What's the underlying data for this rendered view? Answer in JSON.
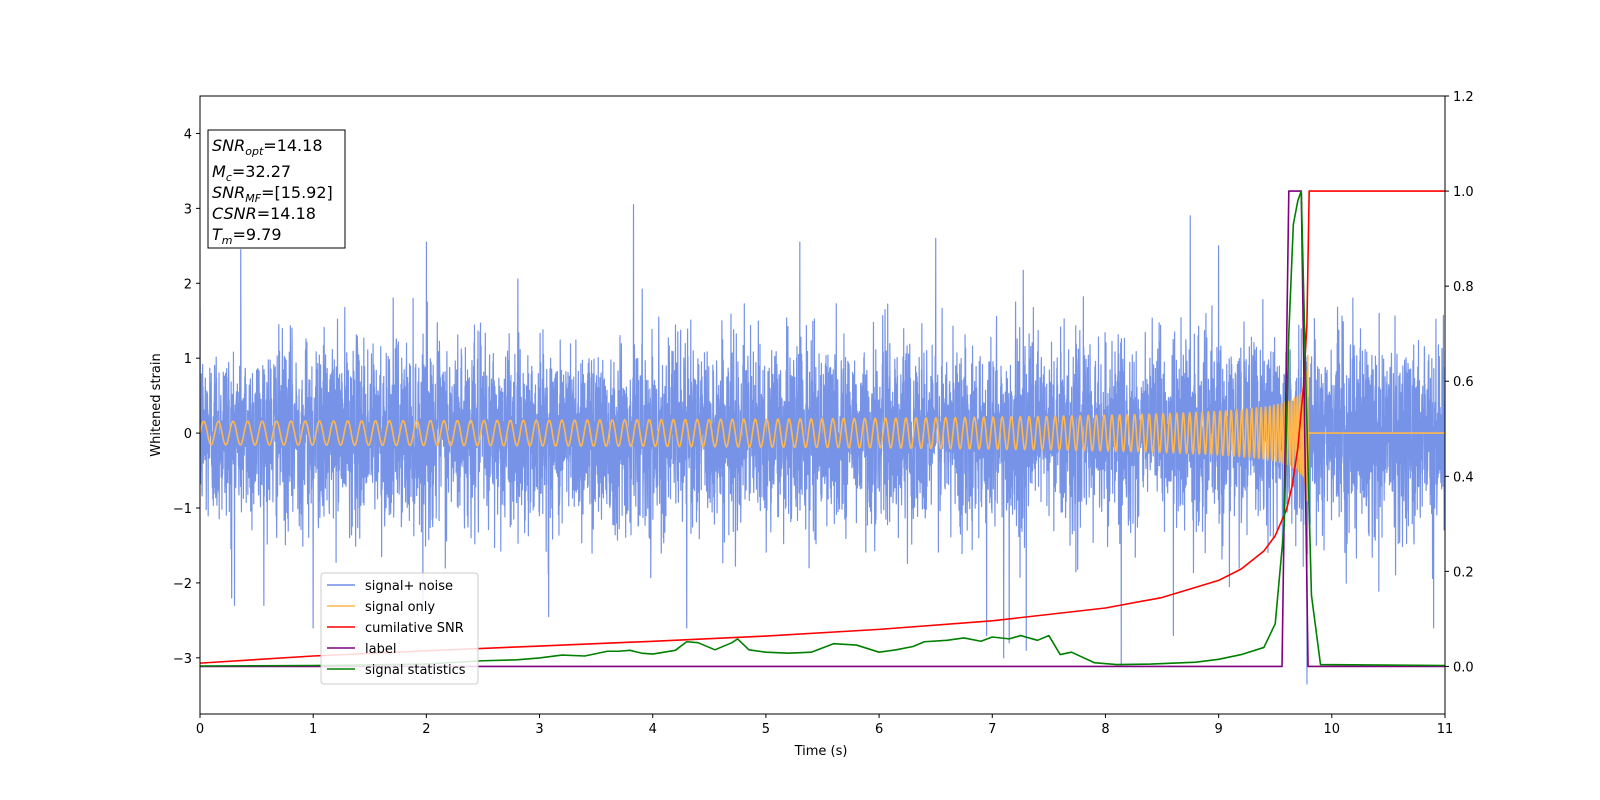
{
  "chart_data": {
    "type": "line",
    "xlabel": "Time (s)",
    "ylabel": "Whitened strain",
    "xlim": [
      0,
      11
    ],
    "ylim_left": [
      -3.75,
      4.5
    ],
    "ylim_right": [
      -0.1,
      1.2
    ],
    "x_ticks": [
      "0",
      "1",
      "2",
      "3",
      "4",
      "5",
      "6",
      "7",
      "8",
      "9",
      "10",
      "11"
    ],
    "y_ticks_left": [
      "−3",
      "−2",
      "−1",
      "0",
      "1",
      "2",
      "3",
      "4"
    ],
    "y_ticks_right": [
      "0.0",
      "0.2",
      "0.4",
      "0.6",
      "0.8",
      "1.0",
      "1.2"
    ],
    "grid": false,
    "legend_position": "lower-left",
    "annotation": {
      "snr_opt": {
        "base": "SNR",
        "sub": "opt",
        "value": "=14.18"
      },
      "mc": {
        "base": "M",
        "sub": "c",
        "value": "=32.27"
      },
      "snr_mf": {
        "base": "SNR",
        "sub": "MF",
        "value": "=[15.92]"
      },
      "csnr": {
        "base": "CSNR",
        "sub": "",
        "value": "=14.18"
      },
      "tm": {
        "base": "T",
        "sub": "m",
        "value": "=9.79"
      }
    },
    "series": [
      {
        "name": "signal+ noise",
        "axis": "left",
        "color": "#6f8de6",
        "kind": "noise",
        "sigma": 0.6,
        "x_range": [
          0,
          11
        ],
        "peaks": [
          [
            0.36,
            2.45
          ],
          [
            0.28,
            -2.2
          ],
          [
            1.0,
            -2.6
          ],
          [
            2.0,
            2.55
          ],
          [
            3.08,
            -2.45
          ],
          [
            3.83,
            3.05
          ],
          [
            4.3,
            -2.6
          ],
          [
            5.3,
            2.55
          ],
          [
            6.5,
            2.6
          ],
          [
            6.95,
            -2.7
          ],
          [
            7.1,
            -3.0
          ],
          [
            7.15,
            -2.8
          ],
          [
            7.3,
            -2.9
          ],
          [
            8.14,
            -3.1
          ],
          [
            8.6,
            -2.7
          ],
          [
            8.75,
            2.9
          ],
          [
            9.0,
            2.5
          ],
          [
            9.78,
            -3.35
          ],
          [
            10.9,
            -2.6
          ]
        ]
      },
      {
        "name": "signal only",
        "axis": "left",
        "color": "#ffb74d",
        "kind": "chirp",
        "t_merge": 9.79,
        "peak_amplitude": 1.1
      },
      {
        "name": "cumilative SNR",
        "axis": "right",
        "color": "#ff0000",
        "x": [
          0,
          1,
          2,
          3,
          4,
          5,
          6,
          7,
          8,
          8.5,
          9.0,
          9.2,
          9.4,
          9.5,
          9.6,
          9.65,
          9.7,
          9.75,
          9.78,
          9.8,
          11
        ],
        "y": [
          0.007,
          0.022,
          0.033,
          0.043,
          0.053,
          0.064,
          0.078,
          0.096,
          0.123,
          0.145,
          0.181,
          0.205,
          0.243,
          0.275,
          0.33,
          0.38,
          0.46,
          0.59,
          0.72,
          1.0,
          1.0
        ]
      },
      {
        "name": "label",
        "axis": "right",
        "color": "#800080",
        "x": [
          0,
          9.56,
          9.62,
          9.73,
          9.79,
          11
        ],
        "y": [
          0.0,
          0.0,
          1.0,
          1.0,
          0.0,
          0.0
        ]
      },
      {
        "name": "signal statistics",
        "axis": "right",
        "color": "#008000",
        "x": [
          0,
          1,
          2,
          2.5,
          2.8,
          3.0,
          3.2,
          3.4,
          3.6,
          3.7,
          3.8,
          3.9,
          4.0,
          4.2,
          4.3,
          4.4,
          4.55,
          4.7,
          4.75,
          4.85,
          5.0,
          5.2,
          5.4,
          5.6,
          5.8,
          6.0,
          6.15,
          6.3,
          6.4,
          6.6,
          6.75,
          6.9,
          7.0,
          7.15,
          7.25,
          7.4,
          7.5,
          7.6,
          7.7,
          7.9,
          8.1,
          8.4,
          8.8,
          9.0,
          9.2,
          9.4,
          9.5,
          9.58,
          9.62,
          9.66,
          9.7,
          9.73,
          9.77,
          9.82,
          9.9,
          11
        ],
        "y": [
          0.001,
          0.002,
          0.005,
          0.012,
          0.014,
          0.018,
          0.024,
          0.022,
          0.032,
          0.032,
          0.034,
          0.028,
          0.026,
          0.034,
          0.052,
          0.05,
          0.035,
          0.05,
          0.058,
          0.035,
          0.03,
          0.028,
          0.03,
          0.048,
          0.045,
          0.03,
          0.035,
          0.042,
          0.052,
          0.055,
          0.06,
          0.053,
          0.062,
          0.058,
          0.065,
          0.055,
          0.065,
          0.025,
          0.03,
          0.008,
          0.004,
          0.005,
          0.009,
          0.015,
          0.025,
          0.04,
          0.09,
          0.3,
          0.7,
          0.93,
          0.98,
          1.0,
          0.6,
          0.15,
          0.004,
          0.002
        ]
      }
    ]
  }
}
